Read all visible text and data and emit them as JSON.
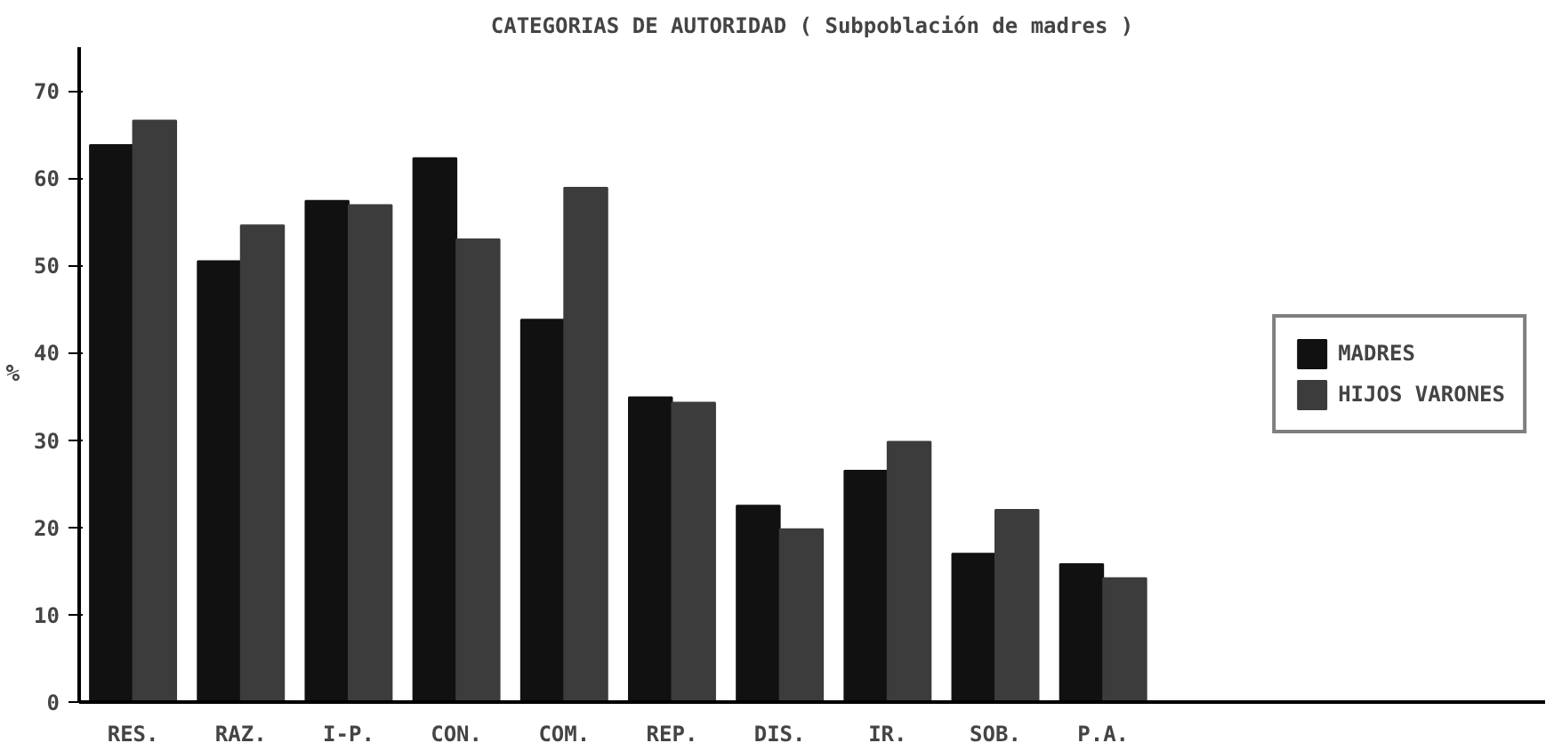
{
  "chart_data": {
    "type": "bar",
    "title": "CATEGORIAS DE AUTORIDAD ( Subpoblación de madres )",
    "ylabel": "%",
    "categories": [
      "RES.",
      "RAZ.",
      "I-P.",
      "CON.",
      "COM.",
      "REP.",
      "DIS.",
      "IR.",
      "SOB.",
      "P.A."
    ],
    "series": [
      {
        "name": "MADRES",
        "color": "#111111",
        "values": [
          63.8,
          50.5,
          57.4,
          62.3,
          43.8,
          34.9,
          22.5,
          26.5,
          17,
          15.8
        ]
      },
      {
        "name": "HIJOS VARONES",
        "color": "#3c3c3c",
        "values": [
          66.6,
          54.6,
          56.9,
          53.0,
          58.9,
          34.3,
          19.8,
          29.8,
          22,
          14.2
        ]
      }
    ],
    "ylim": [
      0,
      75
    ],
    "yticks": [
      0,
      10,
      20,
      30,
      40,
      50,
      60,
      70
    ],
    "grid": false,
    "legend": "right"
  }
}
